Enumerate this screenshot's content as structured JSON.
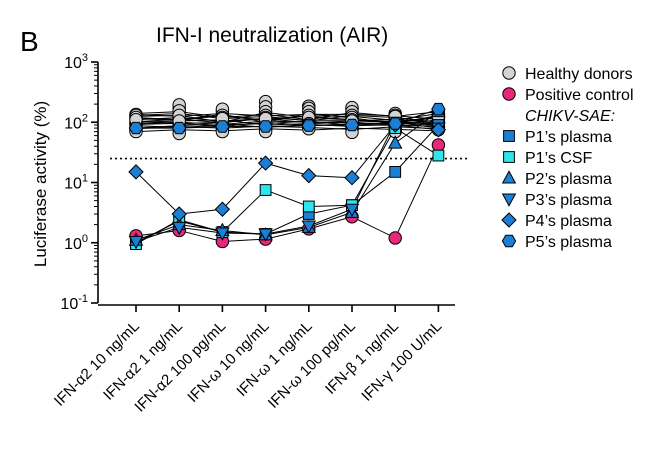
{
  "chart_data": {
    "type": "scatter",
    "panel_label": "B",
    "title": "IFN-I neutralization (AIR)",
    "ylabel": "Luciferase activity (%)",
    "xlabel": "",
    "yscale": "log10",
    "ylim": [
      0.1,
      1000
    ],
    "yticks": [
      {
        "value": 1000,
        "base": "10",
        "exp": "3"
      },
      {
        "value": 100,
        "base": "10",
        "exp": "2"
      },
      {
        "value": 10,
        "base": "10",
        "exp": "1"
      },
      {
        "value": 1,
        "base": "10",
        "exp": "0"
      },
      {
        "value": 0.1,
        "base": "10",
        "exp": "-1"
      }
    ],
    "categories": [
      "IFN-α2 10 ng/mL",
      "IFN-α2 1 ng/mL",
      "IFN-α2 100 pg/mL",
      "IFN-ω 10 ng/mL",
      "IFN-ω 1 ng/mL",
      "IFN-ω 100 pg/mL",
      "IFN-β 1 ng/mL",
      "IFN-γ 100 U/mL"
    ],
    "threshold": 25,
    "healthy_donors": {
      "name": "Healthy donors",
      "color": "#d3d3d3",
      "lines": [
        [
          110,
          120,
          105,
          115,
          125,
          110,
          100,
          95
        ],
        [
          95,
          100,
          92,
          105,
          100,
          98,
          90,
          110
        ],
        [
          130,
          140,
          115,
          125,
          105,
          130,
          120,
          100
        ],
        [
          80,
          88,
          95,
          82,
          92,
          85,
          105,
          90
        ],
        [
          120,
          110,
          135,
          100,
          140,
          118,
          95,
          130
        ],
        [
          70,
          75,
          72,
          78,
          74,
          80,
          76,
          72
        ],
        [
          105,
          95,
          100,
          115,
          98,
          105,
          112,
          96
        ],
        [
          140,
          150,
          120,
          135,
          110,
          145,
          125,
          150
        ],
        [
          88,
          82,
          90,
          95,
          105,
          88,
          90,
          85
        ],
        [
          100,
          105,
          110,
          90,
          95,
          100,
          105,
          105
        ],
        [
          125,
          130,
          100,
          145,
          120,
          110,
          100,
          118
        ],
        [
          92,
          96,
          85,
          100,
          88,
          94,
          98,
          88
        ],
        [
          115,
          108,
          128,
          108,
          128,
          125,
          108,
          140
        ],
        [
          78,
          85,
          80,
          86,
          82,
          76,
          84,
          78
        ],
        [
          135,
          125,
          140,
          128,
          135,
          135,
          128,
          112
        ],
        [
          102,
          112,
          98,
          118,
          108,
          108,
          102,
          122
        ]
      ],
      "points": [
        [
          135,
          140,
          150,
          220,
          185,
          165,
          140,
          100
        ],
        [
          125,
          170,
          165,
          180,
          170,
          175,
          120,
          150
        ],
        [
          115,
          195,
          130,
          150,
          150,
          150,
          110,
          130
        ],
        [
          105,
          155,
          110,
          130,
          130,
          130,
          95,
          120
        ],
        [
          100,
          120,
          105,
          120,
          115,
          120,
          85,
          110
        ],
        [
          95,
          110,
          95,
          110,
          105,
          110,
          130,
          95
        ],
        [
          90,
          100,
          90,
          95,
          100,
          95,
          80,
          85
        ],
        [
          85,
          90,
          85,
          90,
          92,
          90,
          100,
          80
        ],
        [
          80,
          80,
          80,
          85,
          88,
          85,
          75,
          100
        ],
        [
          75,
          75,
          75,
          80,
          82,
          80,
          90,
          90
        ],
        [
          70,
          65,
          70,
          75,
          78,
          75,
          70,
          75
        ],
        [
          130,
          85,
          120,
          70,
          120,
          68,
          115,
          140
        ],
        [
          120,
          130,
          100,
          100,
          95,
          100,
          105,
          135
        ],
        [
          110,
          105,
          115,
          115,
          90,
          105,
          125,
          125
        ]
      ]
    },
    "positive_control": {
      "name": "Positive control",
      "color": "#e8297a",
      "values": [
        1.3,
        1.6,
        1.05,
        1.15,
        1.7,
        2.7,
        1.2,
        42
      ]
    },
    "legend_group_label": "CHIKV-SAE:",
    "series": [
      {
        "name": "P1’s plasma",
        "marker": "square",
        "color": "#1c7fd6",
        "values": [
          1.0,
          2.3,
          1.5,
          1.4,
          3.0,
          4.2,
          15,
          90
        ]
      },
      {
        "name": "P1’s CSF",
        "marker": "square",
        "color": "#2ee5ee",
        "values": [
          0.95,
          2.4,
          1.5,
          7.5,
          4.0,
          4.2,
          80,
          28
        ]
      },
      {
        "name": "P2’s plasma",
        "marker": "triangle-up",
        "color": "#1c7fd6",
        "values": [
          1.1,
          2.0,
          1.6,
          1.35,
          1.8,
          3.2,
          45,
          150
        ]
      },
      {
        "name": "P3’s plasma",
        "marker": "triangle-down",
        "color": "#1c7fd6",
        "values": [
          1.05,
          1.8,
          1.45,
          1.4,
          1.9,
          3.6,
          100,
          80
        ]
      },
      {
        "name": "P4’s plasma",
        "marker": "diamond",
        "color": "#1c7fd6",
        "values": [
          15,
          3.0,
          3.6,
          21,
          13,
          12,
          90,
          75
        ]
      },
      {
        "name": "P5’s plasma",
        "marker": "hexagon",
        "color": "#1c7fd6",
        "values": [
          80,
          80,
          85,
          85,
          88,
          90,
          95,
          165
        ]
      }
    ]
  }
}
